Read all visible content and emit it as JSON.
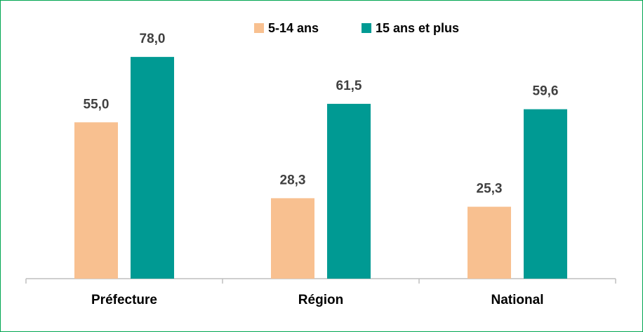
{
  "chart_data": {
    "type": "bar",
    "title": "",
    "xlabel": "",
    "ylabel": "",
    "categories": [
      "Préfecture",
      "Région",
      "National"
    ],
    "series": [
      {
        "name": "5-14 ans",
        "values": [
          55.0,
          28.3,
          25.3
        ],
        "labels": [
          "55,0",
          "28,3",
          "25,3"
        ],
        "color": "#F8C090"
      },
      {
        "name": "15 ans et plus",
        "values": [
          78.0,
          61.5,
          59.6
        ],
        "labels": [
          "78,0",
          "61,5",
          "59,6"
        ],
        "color": "#009A93"
      }
    ],
    "ylim": [
      0,
      100
    ],
    "grid": false,
    "legend": "top-center",
    "colors": {
      "frame": "#00A651",
      "axis": "#BFBFBF",
      "value_label": "#404040",
      "category_label": "#000000"
    }
  }
}
